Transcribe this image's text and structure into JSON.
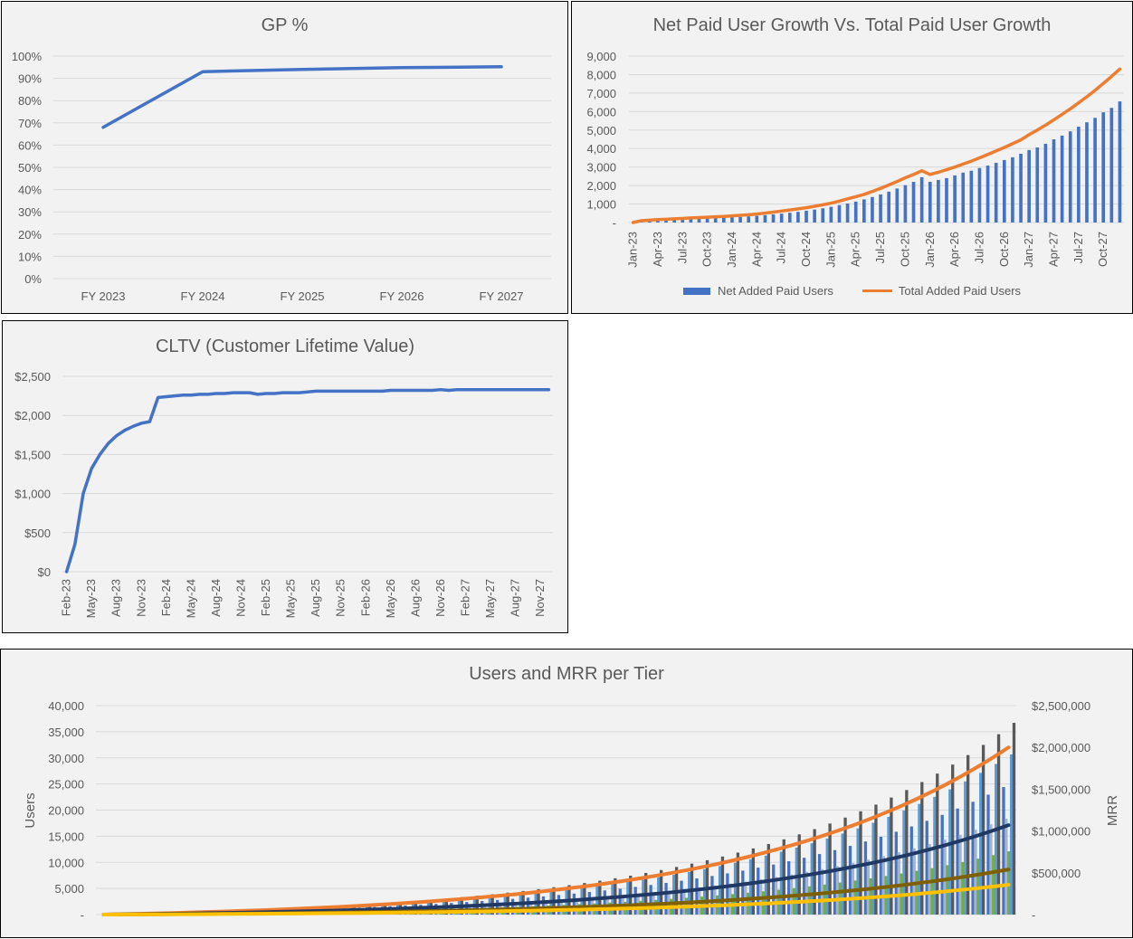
{
  "chart_data": [
    {
      "type": "line",
      "title": "GP %",
      "categories": [
        "FY 2023",
        "FY 2024",
        "FY 2025",
        "FY 2026",
        "FY 2027"
      ],
      "values": [
        0.68,
        0.93,
        0.94,
        0.948,
        0.952
      ],
      "ylim": [
        0,
        1
      ],
      "yticks": [
        "0%",
        "10%",
        "20%",
        "30%",
        "40%",
        "50%",
        "60%",
        "70%",
        "80%",
        "90%",
        "100%"
      ],
      "grid": true,
      "color": "#4472c4"
    },
    {
      "type": "bar+line",
      "title": "Net Paid User Growth Vs. Total Paid User Growth",
      "categories": [
        "Jan-23",
        "Feb-23",
        "Mar-23",
        "Apr-23",
        "May-23",
        "Jun-23",
        "Jul-23",
        "Aug-23",
        "Sep-23",
        "Oct-23",
        "Nov-23",
        "Dec-23",
        "Jan-24",
        "Feb-24",
        "Mar-24",
        "Apr-24",
        "May-24",
        "Jun-24",
        "Jul-24",
        "Aug-24",
        "Sep-24",
        "Oct-24",
        "Nov-24",
        "Dec-24",
        "Jan-25",
        "Feb-25",
        "Mar-25",
        "Apr-25",
        "May-25",
        "Jun-25",
        "Jul-25",
        "Aug-25",
        "Sep-25",
        "Oct-25",
        "Nov-25",
        "Dec-25",
        "Jan-26",
        "Feb-26",
        "Mar-26",
        "Apr-26",
        "May-26",
        "Jun-26",
        "Jul-26",
        "Aug-26",
        "Sep-26",
        "Oct-26",
        "Nov-26",
        "Dec-26",
        "Jan-27",
        "Feb-27",
        "Mar-27",
        "Apr-27",
        "May-27",
        "Jun-27",
        "Jul-27",
        "Aug-27",
        "Sep-27",
        "Oct-27",
        "Nov-27",
        "Dec-27"
      ],
      "tick_labels": [
        "Jan-23",
        "Apr-23",
        "Jul-23",
        "Oct-23",
        "Jan-24",
        "Apr-24",
        "Jul-24",
        "Oct-24",
        "Jan-25",
        "Apr-25",
        "Jul-25",
        "Oct-25",
        "Jan-26",
        "Apr-26",
        "Jul-26",
        "Oct-26",
        "Jan-27",
        "Apr-27",
        "Jul-27",
        "Oct-27"
      ],
      "series": [
        {
          "name": "Net Added Paid Users",
          "kind": "bar",
          "color": "#4472c4",
          "values": [
            0,
            50,
            80,
            100,
            120,
            140,
            160,
            180,
            200,
            220,
            240,
            260,
            280,
            300,
            330,
            360,
            400,
            440,
            480,
            530,
            580,
            640,
            700,
            770,
            850,
            940,
            1030,
            1130,
            1250,
            1380,
            1520,
            1670,
            1840,
            2020,
            2200,
            2450,
            2200,
            2300,
            2400,
            2550,
            2700,
            2800,
            2950,
            3080,
            3230,
            3380,
            3530,
            3720,
            3920,
            4060,
            4260,
            4500,
            4700,
            4930,
            5180,
            5420,
            5660,
            5960,
            6200,
            6550
          ]
        },
        {
          "name": "Total Added Paid Users",
          "kind": "line",
          "color": "#ed7d31",
          "values": [
            0,
            100,
            130,
            160,
            180,
            200,
            220,
            250,
            270,
            290,
            310,
            330,
            360,
            390,
            420,
            460,
            510,
            560,
            620,
            680,
            740,
            800,
            880,
            960,
            1050,
            1160,
            1280,
            1400,
            1520,
            1680,
            1850,
            2030,
            2220,
            2420,
            2600,
            2800,
            2600,
            2720,
            2860,
            3000,
            3160,
            3320,
            3500,
            3680,
            3870,
            4060,
            4260,
            4470,
            4750,
            5000,
            5270,
            5550,
            5850,
            6150,
            6470,
            6800,
            7150,
            7520,
            7900,
            8300
          ]
        }
      ],
      "ylim": [
        0,
        9000
      ],
      "yticks": [
        "-",
        "1,000",
        "2,000",
        "3,000",
        "4,000",
        "5,000",
        "6,000",
        "7,000",
        "8,000",
        "9,000"
      ],
      "grid": true,
      "legend": "bottom"
    },
    {
      "type": "line",
      "title": "CLTV (Customer Lifetime Value)",
      "categories": [
        "Feb-23",
        "Mar-23",
        "Apr-23",
        "May-23",
        "Jun-23",
        "Jul-23",
        "Aug-23",
        "Sep-23",
        "Oct-23",
        "Nov-23",
        "Dec-23",
        "Jan-24",
        "Feb-24",
        "Mar-24",
        "Apr-24",
        "May-24",
        "Jun-24",
        "Jul-24",
        "Aug-24",
        "Sep-24",
        "Oct-24",
        "Nov-24",
        "Dec-24",
        "Jan-25",
        "Feb-25",
        "Mar-25",
        "Apr-25",
        "May-25",
        "Jun-25",
        "Jul-25",
        "Aug-25",
        "Sep-25",
        "Oct-25",
        "Nov-25",
        "Dec-25",
        "Jan-26",
        "Feb-26",
        "Mar-26",
        "Apr-26",
        "May-26",
        "Jun-26",
        "Jul-26",
        "Aug-26",
        "Sep-26",
        "Oct-26",
        "Nov-26",
        "Dec-26",
        "Jan-27",
        "Feb-27",
        "Mar-27",
        "Apr-27",
        "May-27",
        "Jun-27",
        "Jul-27",
        "Aug-27",
        "Sep-27",
        "Oct-27",
        "Nov-27",
        "Dec-27"
      ],
      "tick_labels": [
        "Feb-23",
        "May-23",
        "Aug-23",
        "Nov-23",
        "Feb-24",
        "May-24",
        "Aug-24",
        "Nov-24",
        "Feb-25",
        "May-25",
        "Aug-25",
        "Nov-25",
        "Feb-26",
        "May-26",
        "Aug-26",
        "Nov-26",
        "Feb-27",
        "May-27",
        "Aug-27",
        "Nov-27"
      ],
      "values": [
        0,
        350,
        1000,
        1320,
        1500,
        1640,
        1740,
        1810,
        1860,
        1900,
        1920,
        2230,
        2240,
        2250,
        2260,
        2260,
        2270,
        2270,
        2280,
        2280,
        2290,
        2290,
        2290,
        2270,
        2280,
        2280,
        2290,
        2290,
        2290,
        2300,
        2310,
        2310,
        2310,
        2310,
        2310,
        2310,
        2310,
        2310,
        2310,
        2320,
        2320,
        2320,
        2320,
        2320,
        2320,
        2330,
        2320,
        2330,
        2330,
        2330,
        2330,
        2330,
        2330,
        2330,
        2330,
        2330,
        2330,
        2330,
        2330
      ],
      "ylim": [
        0,
        2500
      ],
      "yticks": [
        "$0",
        "$500",
        "$1,000",
        "$1,500",
        "$2,000",
        "$2,500"
      ],
      "grid": true,
      "color": "#4472c4"
    },
    {
      "type": "bar+line",
      "title": "Users and MRR per Tier",
      "ylabel": "Users",
      "y2label": "MRR",
      "ylim": [
        0,
        40000
      ],
      "y2lim": [
        0,
        2500000
      ],
      "yticks": [
        "-",
        "5,000",
        "10,000",
        "15,000",
        "20,000",
        "25,000",
        "30,000",
        "35,000",
        "40,000"
      ],
      "y2ticks": [
        "-",
        "$500,000",
        "$1,000,000",
        "$1,500,000",
        "$2,000,000",
        "$2,500,000"
      ],
      "grid": true,
      "bar_series": [
        {
          "color": "#4472c4",
          "values": [
            0,
            46,
            95,
            149,
            203,
            261,
            325,
            390,
            461,
            537,
            615,
            700,
            788,
            883,
            983,
            1091,
            1203,
            1322,
            1449,
            1586,
            1730,
            1881,
            2042,
            2213,
            2396,
            2589,
            2794,
            3009,
            3240,
            3484,
            3745,
            4019,
            4311,
            4621,
            4951,
            5300,
            5671,
            6063,
            6481,
            6922,
            7391,
            7891,
            8418,
            8979,
            9575,
            10207,
            10878,
            11588,
            12342,
            13144,
            13993,
            14894,
            15853,
            16868,
            17944,
            19088,
            20298,
            21587,
            22953,
            24400
          ]
        },
        {
          "color": "#a5b4c8",
          "values": [
            0,
            35,
            72,
            112,
            152,
            196,
            244,
            294,
            347,
            404,
            462,
            527,
            593,
            664,
            740,
            820,
            905,
            995,
            1090,
            1193,
            1301,
            1415,
            1536,
            1664,
            1802,
            1947,
            2101,
            2263,
            2437,
            2620,
            2817,
            3022,
            3242,
            3476,
            3723,
            3986,
            4265,
            4560,
            4874,
            5206,
            5558,
            5934,
            6331,
            6753,
            7201,
            7676,
            8180,
            8715,
            9281,
            9885,
            10524,
            11201,
            11922,
            12685,
            13495,
            14355,
            15265,
            16234,
            17262,
            18350
          ]
        },
        {
          "color": "#70ad47",
          "values": [
            0,
            23,
            47,
            74,
            100,
            129,
            161,
            194,
            229,
            266,
            305,
            347,
            391,
            438,
            488,
            541,
            597,
            656,
            719,
            787,
            858,
            933,
            1013,
            1097,
            1188,
            1284,
            1385,
            1492,
            1607,
            1728,
            1857,
            1993,
            2138,
            2292,
            2455,
            2628,
            2812,
            3007,
            3214,
            3433,
            3665,
            3913,
            4175,
            4453,
            4748,
            5061,
            5394,
            5746,
            6120,
            6518,
            6939,
            7386,
            7861,
            8365,
            8898,
            9466,
            10066,
            10705,
            11384,
            12100
          ]
        },
        {
          "color": "#5b9bd5",
          "values": [
            0,
            58,
            120,
            187,
            254,
            328,
            408,
            490,
            579,
            674,
            772,
            880,
            990,
            1110,
            1235,
            1370,
            1511,
            1661,
            1821,
            1992,
            2173,
            2363,
            2565,
            2780,
            3010,
            3252,
            3509,
            3779,
            4070,
            4377,
            4705,
            5048,
            5416,
            5805,
            6219,
            6657,
            7123,
            7617,
            8141,
            8695,
            9284,
            9912,
            10574,
            11279,
            12027,
            12821,
            13664,
            14556,
            15503,
            16511,
            17578,
            18709,
            19913,
            21188,
            22540,
            23978,
            25498,
            27116,
            28832,
            30650
          ]
        },
        {
          "color": "#595959",
          "values": [
            0,
            70,
            143,
            224,
            305,
            393,
            488,
            587,
            694,
            807,
            925,
            1053,
            1185,
            1329,
            1479,
            1640,
            1809,
            1989,
            2180,
            2386,
            2602,
            2830,
            3072,
            3329,
            3604,
            3894,
            4202,
            4525,
            4874,
            5241,
            5633,
            6045,
            6485,
            6951,
            7446,
            7971,
            8529,
            9120,
            9748,
            10412,
            11116,
            11869,
            12662,
            13506,
            14401,
            15352,
            16361,
            17429,
            18563,
            19770,
            21047,
            22402,
            23844,
            25371,
            26989,
            28710,
            30531,
            32468,
            34524,
            36700
          ]
        }
      ],
      "line_series": [
        {
          "color": "#ed7d31",
          "values": [
            0,
            3800,
            7800,
            12200,
            16600,
            21400,
            26600,
            32000,
            37800,
            44000,
            50400,
            57400,
            64600,
            72400,
            80600,
            89400,
            98600,
            108400,
            118800,
            130000,
            141800,
            154200,
            167400,
            181400,
            196400,
            212200,
            229000,
            246600,
            265600,
            285600,
            307000,
            329400,
            353400,
            378800,
            405800,
            434400,
            464800,
            497000,
            531200,
            567400,
            605800,
            646800,
            690000,
            736000,
            784800,
            836600,
            891600,
            949800,
            1011600,
            1077400,
            1147000,
            1220800,
            1299400,
            1382600,
            1470800,
            1564600,
            1663800,
            1769400,
            1881400,
            2000000
          ]
        },
        {
          "color": "#203864",
          "values": [
            0,
            2000,
            4200,
            6500,
            8900,
            11400,
            14200,
            17100,
            20200,
            23500,
            27000,
            30700,
            34600,
            38700,
            43100,
            47800,
            52800,
            58000,
            63600,
            69600,
            75900,
            82500,
            89600,
            97000,
            105100,
            113500,
            122500,
            131900,
            142100,
            152800,
            164200,
            176200,
            189100,
            202700,
            217100,
            232400,
            248700,
            265900,
            284200,
            303600,
            324100,
            346000,
            369200,
            393800,
            419900,
            447600,
            477000,
            508100,
            541200,
            576400,
            613600,
            653100,
            695200,
            739700,
            786900,
            837100,
            890100,
            946600,
            1006500,
            1070000
          ]
        },
        {
          "color": "#7f6000",
          "values": [
            0,
            1000,
            2100,
            3300,
            4500,
            5800,
            7200,
            8600,
            10200,
            11900,
            13600,
            15500,
            17400,
            19500,
            21800,
            24100,
            26600,
            29300,
            32100,
            35100,
            38300,
            41600,
            45200,
            49000,
            53000,
            57300,
            61800,
            66600,
            71700,
            77100,
            82900,
            88900,
            95400,
            102300,
            109600,
            117300,
            125500,
            134200,
            143400,
            153200,
            163600,
            174600,
            186300,
            198700,
            211900,
            225900,
            240700,
            256400,
            273100,
            290900,
            309700,
            329600,
            350800,
            373300,
            397100,
            422400,
            449200,
            477700,
            508000,
            540000
          ]
        },
        {
          "color": "#ffc000",
          "values": [
            0,
            700,
            1400,
            2200,
            3000,
            3800,
            4700,
            5700,
            6700,
            7900,
            9000,
            10200,
            11500,
            12900,
            14400,
            16000,
            17600,
            19300,
            21200,
            23200,
            25300,
            27500,
            29900,
            32400,
            35100,
            37900,
            40900,
            44000,
            47400,
            51000,
            54800,
            58800,
            63100,
            67600,
            72400,
            77500,
            82900,
            88700,
            94800,
            101300,
            108100,
            115500,
            123200,
            131400,
            140100,
            149300,
            159200,
            169500,
            180600,
            192300,
            204700,
            217900,
            231900,
            246800,
            262500,
            279300,
            297000,
            315800,
            335800,
            357000
          ]
        }
      ]
    }
  ]
}
